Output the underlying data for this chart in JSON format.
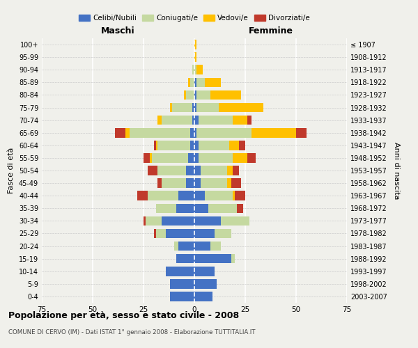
{
  "age_groups": [
    "0-4",
    "5-9",
    "10-14",
    "15-19",
    "20-24",
    "25-29",
    "30-34",
    "35-39",
    "40-44",
    "45-49",
    "50-54",
    "55-59",
    "60-64",
    "65-69",
    "70-74",
    "75-79",
    "80-84",
    "85-89",
    "90-94",
    "95-99",
    "100+"
  ],
  "birth_years": [
    "2003-2007",
    "1998-2002",
    "1993-1997",
    "1988-1992",
    "1983-1987",
    "1978-1982",
    "1973-1977",
    "1968-1972",
    "1963-1967",
    "1958-1962",
    "1953-1957",
    "1948-1952",
    "1943-1947",
    "1938-1942",
    "1933-1937",
    "1928-1932",
    "1923-1927",
    "1918-1922",
    "1913-1917",
    "1908-1912",
    "≤ 1907"
  ],
  "male": {
    "celibi": [
      12,
      12,
      14,
      9,
      8,
      14,
      16,
      9,
      8,
      4,
      4,
      3,
      2,
      2,
      1,
      1,
      0,
      0,
      0,
      0,
      0
    ],
    "coniugati": [
      0,
      0,
      0,
      0,
      2,
      5,
      8,
      10,
      15,
      12,
      14,
      18,
      16,
      30,
      15,
      10,
      4,
      2,
      1,
      0,
      0
    ],
    "vedovi": [
      0,
      0,
      0,
      0,
      0,
      0,
      0,
      0,
      0,
      0,
      0,
      1,
      1,
      2,
      2,
      1,
      1,
      1,
      0,
      0,
      0
    ],
    "divorziati": [
      0,
      0,
      0,
      0,
      0,
      1,
      1,
      0,
      5,
      2,
      5,
      3,
      1,
      5,
      0,
      0,
      0,
      0,
      0,
      0,
      0
    ]
  },
  "female": {
    "nubili": [
      9,
      11,
      10,
      18,
      8,
      10,
      13,
      7,
      5,
      3,
      3,
      2,
      2,
      1,
      2,
      1,
      1,
      1,
      0,
      0,
      0
    ],
    "coniugate": [
      0,
      0,
      0,
      2,
      5,
      8,
      14,
      14,
      14,
      13,
      13,
      17,
      15,
      27,
      17,
      11,
      7,
      4,
      1,
      0,
      0
    ],
    "vedove": [
      0,
      0,
      0,
      0,
      0,
      0,
      0,
      0,
      1,
      2,
      3,
      7,
      5,
      22,
      7,
      22,
      15,
      8,
      3,
      1,
      1
    ],
    "divorziate": [
      0,
      0,
      0,
      0,
      0,
      0,
      0,
      3,
      5,
      5,
      3,
      4,
      3,
      5,
      2,
      0,
      0,
      0,
      0,
      0,
      0
    ]
  },
  "colors": {
    "celibi_nubili": "#4472c4",
    "coniugati": "#c5d9a0",
    "vedovi": "#ffc000",
    "divorziati": "#c0392b"
  },
  "title": "Popolazione per età, sesso e stato civile - 2008",
  "subtitle": "COMUNE DI CERVO (IM) - Dati ISTAT 1° gennaio 2008 - Elaborazione TUTTITALIA.IT",
  "xlabel_left": "Maschi",
  "xlabel_right": "Femmine",
  "ylabel_left": "Fasce di età",
  "ylabel_right": "Anni di nascita",
  "xlim": 75,
  "legend_labels": [
    "Celibi/Nubili",
    "Coniugati/e",
    "Vedovi/e",
    "Divorziati/e"
  ],
  "background_color": "#f0f0eb",
  "bar_height": 0.75
}
